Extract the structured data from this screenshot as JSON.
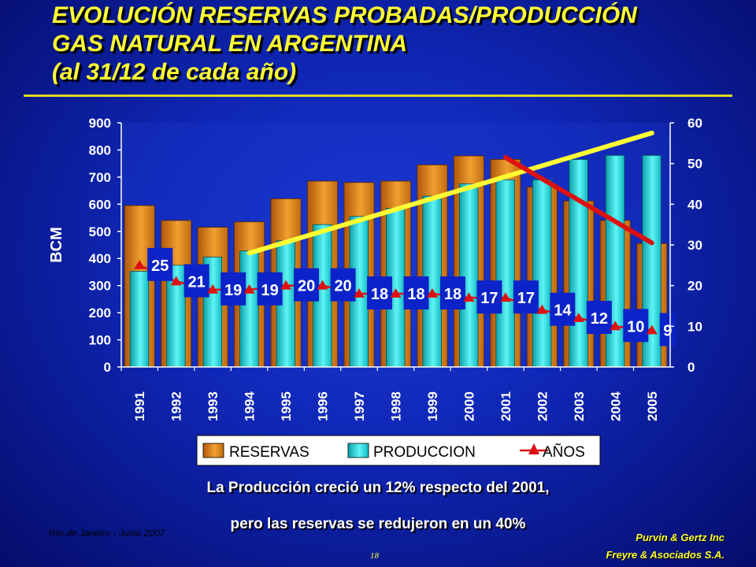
{
  "title": {
    "line1": "EVOLUCIÓN RESERVAS PROBADAS/PRODUCCIÓN",
    "line2": "GAS NATURAL EN ARGENTINA",
    "line3": "(al 31/12 de cada año)"
  },
  "chart_data": {
    "type": "bar",
    "categories": [
      "1991",
      "1992",
      "1993",
      "1994",
      "1995",
      "1996",
      "1997",
      "1998",
      "1999",
      "2000",
      "2001",
      "2002",
      "2003",
      "2004",
      "2005"
    ],
    "series": [
      {
        "name": "RESERVAS",
        "axis": "left",
        "type": "bar",
        "color": "#e8901a",
        "values": [
          595,
          540,
          515,
          535,
          620,
          685,
          680,
          685,
          745,
          778,
          765,
          663,
          612,
          540,
          455
        ]
      },
      {
        "name": "PRODUCCION",
        "axis": "right",
        "type": "bar",
        "color": "#22e0e0",
        "values": [
          23.5,
          25,
          27,
          28.5,
          31,
          35,
          37,
          39,
          42,
          45,
          46,
          46,
          51,
          52,
          52
        ]
      },
      {
        "name": "AÑOS",
        "axis": "right",
        "type": "line",
        "color": "#dd1111",
        "values": [
          25,
          21,
          19,
          19,
          20,
          20,
          18,
          18,
          18,
          17,
          17,
          14,
          12,
          10,
          9
        ]
      }
    ],
    "trend_lines": [
      {
        "color": "#ffff33",
        "axis": "right",
        "from": {
          "x": "1994",
          "y": 28
        },
        "to": {
          "x": "2005",
          "y": 57.5
        }
      },
      {
        "color": "#dd1111",
        "axis": "right",
        "from": {
          "x": "2001",
          "y": 51.5
        },
        "to": {
          "x": "2005",
          "y": 30.5
        }
      }
    ],
    "ylabel": "BCM",
    "ylim_left": [
      0,
      900
    ],
    "yticks_left": [
      0,
      100,
      200,
      300,
      400,
      500,
      600,
      700,
      800,
      900
    ],
    "ylim_right": [
      0,
      60
    ],
    "yticks_right": [
      0,
      10,
      20,
      30,
      40,
      50,
      60
    ],
    "legend_position": "bottom",
    "grid": false
  },
  "caption": {
    "line1": "La Producción creció un 12% respecto del 2001,",
    "line2": "pero las reservas se redujeron en un 40%"
  },
  "footer": {
    "left": "Río de Janeiro - Junio 2007",
    "page": "18",
    "right1": "Purvin & Gertz Inc",
    "right2": "Freyre & Asociados S.A."
  }
}
